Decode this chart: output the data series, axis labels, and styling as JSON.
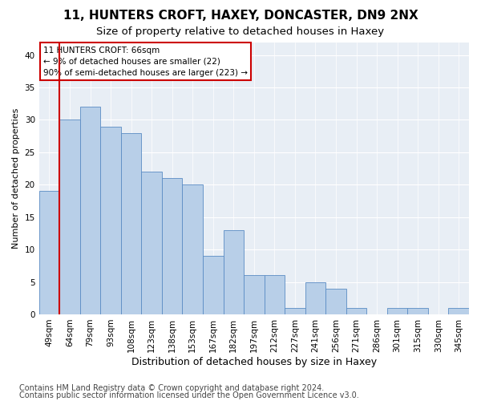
{
  "title1": "11, HUNTERS CROFT, HAXEY, DONCASTER, DN9 2NX",
  "title2": "Size of property relative to detached houses in Haxey",
  "xlabel": "Distribution of detached houses by size in Haxey",
  "ylabel": "Number of detached properties",
  "categories": [
    "49sqm",
    "64sqm",
    "79sqm",
    "93sqm",
    "108sqm",
    "123sqm",
    "138sqm",
    "153sqm",
    "167sqm",
    "182sqm",
    "197sqm",
    "212sqm",
    "227sqm",
    "241sqm",
    "256sqm",
    "271sqm",
    "286sqm",
    "301sqm",
    "315sqm",
    "330sqm",
    "345sqm"
  ],
  "values": [
    19,
    30,
    32,
    29,
    28,
    22,
    21,
    20,
    9,
    13,
    6,
    6,
    1,
    5,
    4,
    1,
    0,
    1,
    1,
    0,
    1
  ],
  "bar_color": "#b8cfe8",
  "bar_edge_color": "#5b8cc4",
  "annotation_text": "11 HUNTERS CROFT: 66sqm\n← 9% of detached houses are smaller (22)\n90% of semi-detached houses are larger (223) →",
  "annotation_box_color": "#ffffff",
  "annotation_box_edge_color": "#cc0000",
  "vline_color": "#cc0000",
  "vline_x_index": 1,
  "ylim": [
    0,
    42
  ],
  "yticks": [
    0,
    5,
    10,
    15,
    20,
    25,
    30,
    35,
    40
  ],
  "background_color": "#e8eef5",
  "footer1": "Contains HM Land Registry data © Crown copyright and database right 2024.",
  "footer2": "Contains public sector information licensed under the Open Government Licence v3.0.",
  "title1_fontsize": 11,
  "title2_fontsize": 9.5,
  "xlabel_fontsize": 9,
  "ylabel_fontsize": 8,
  "tick_fontsize": 7.5,
  "footer_fontsize": 7
}
